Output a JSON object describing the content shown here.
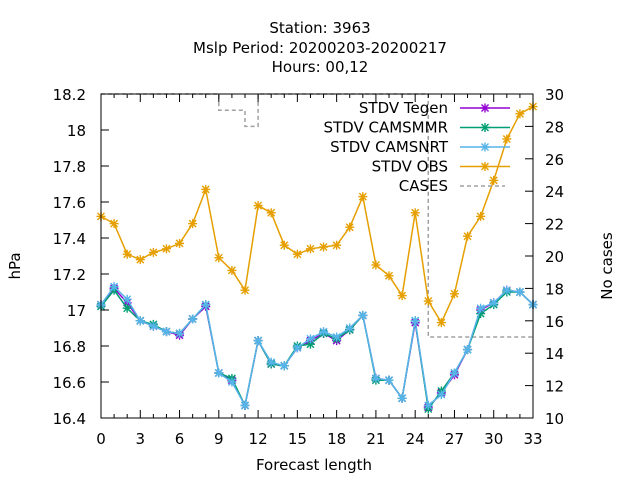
{
  "chart_data": {
    "type": "line",
    "title_lines": [
      "Station:     3963",
      "Mslp   Period: 20200203-20200217",
      "Hours:  00,12"
    ],
    "xlabel": "Forecast length",
    "ylabel": "hPa",
    "y2label": "No cases",
    "xlim": [
      0,
      33
    ],
    "ylim": [
      16.4,
      18.2
    ],
    "y2lim": [
      10,
      30
    ],
    "xticks": [
      "0",
      "3",
      "6",
      "9",
      "12",
      "15",
      "18",
      "21",
      "24",
      "27",
      "30",
      "33"
    ],
    "yticks": [
      "16.4",
      "16.6",
      "16.8",
      "17",
      "17.2",
      "17.4",
      "17.6",
      "17.8",
      "18",
      "18.2"
    ],
    "y2ticks": [
      "10",
      "12",
      "14",
      "16",
      "18",
      "20",
      "22",
      "24",
      "26",
      "28",
      "30"
    ],
    "legend_position": "top-right",
    "x": [
      0,
      1,
      2,
      3,
      4,
      5,
      6,
      7,
      8,
      9,
      10,
      11,
      12,
      13,
      14,
      15,
      16,
      17,
      18,
      19,
      20,
      21,
      22,
      23,
      24,
      25,
      26,
      27,
      28,
      29,
      30,
      31,
      32,
      33
    ],
    "series": [
      {
        "name": "STDV Tegen",
        "color": "#9400d3",
        "axis": "y1",
        "values": [
          17.03,
          17.12,
          17.04,
          16.94,
          16.91,
          16.88,
          16.86,
          16.95,
          17.02,
          16.65,
          16.61,
          16.47,
          16.83,
          16.7,
          16.69,
          16.79,
          16.83,
          16.87,
          16.83,
          16.89,
          16.97,
          16.62,
          16.61,
          16.51,
          16.93,
          16.46,
          16.54,
          16.64,
          16.78,
          17.0,
          17.04,
          17.11,
          17.1,
          17.03
        ]
      },
      {
        "name": "STDV CAMSMMR",
        "color": "#009e73",
        "axis": "y1",
        "values": [
          17.02,
          17.11,
          17.01,
          16.94,
          16.92,
          16.88,
          16.87,
          16.95,
          17.03,
          16.65,
          16.62,
          16.47,
          16.83,
          16.7,
          16.69,
          16.8,
          16.81,
          16.87,
          16.84,
          16.89,
          16.97,
          16.61,
          16.61,
          16.51,
          16.94,
          16.45,
          16.55,
          16.65,
          16.78,
          16.98,
          17.03,
          17.1,
          17.1,
          17.03
        ]
      },
      {
        "name": "STDV CAMSNRT",
        "color": "#56b4e9",
        "axis": "y1",
        "values": [
          17.03,
          17.13,
          17.06,
          16.94,
          16.91,
          16.88,
          16.87,
          16.95,
          17.03,
          16.65,
          16.6,
          16.47,
          16.83,
          16.71,
          16.69,
          16.79,
          16.84,
          16.88,
          16.85,
          16.9,
          16.97,
          16.62,
          16.61,
          16.51,
          16.94,
          16.47,
          16.53,
          16.65,
          16.78,
          17.01,
          17.04,
          17.11,
          17.1,
          17.03
        ]
      },
      {
        "name": "STDV OBS",
        "color": "#e69f00",
        "axis": "y1",
        "values": [
          17.52,
          17.48,
          17.31,
          17.28,
          17.32,
          17.34,
          17.37,
          17.48,
          17.67,
          17.29,
          17.22,
          17.11,
          17.58,
          17.54,
          17.36,
          17.31,
          17.34,
          17.35,
          17.36,
          17.46,
          17.63,
          17.25,
          17.19,
          17.08,
          17.54,
          17.05,
          16.93,
          17.09,
          17.41,
          17.52,
          17.72,
          17.95,
          18.09,
          18.13
        ]
      },
      {
        "name": "CASES",
        "color": "#a0a0a0",
        "axis": "y2",
        "values": [
          30,
          30,
          30,
          30,
          30,
          30,
          30,
          30,
          30,
          29,
          29,
          28,
          30,
          30,
          30,
          30,
          30,
          30,
          30,
          30,
          30,
          30,
          30,
          30,
          30,
          15,
          15,
          15,
          15,
          15,
          15,
          15,
          15,
          15
        ]
      }
    ]
  }
}
